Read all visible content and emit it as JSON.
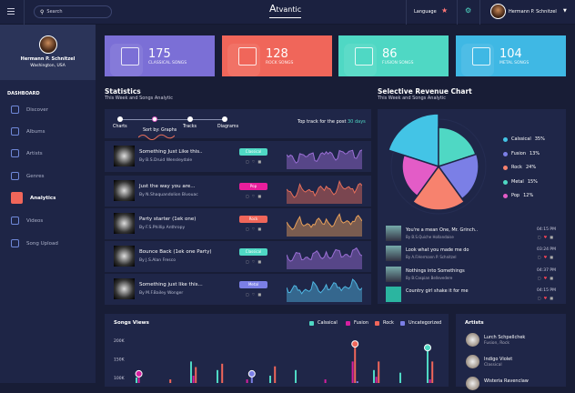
{
  "header": {
    "search_placeholder": "Search",
    "logo": "Atvantic",
    "language": "Language",
    "user": "Hermann P. Schnitzel"
  },
  "profile": {
    "name": "Hermann P. Schnitzel",
    "location": "Washington, USA"
  },
  "sidebar": {
    "section": "DASHBOARD",
    "items": [
      {
        "label": "Discover",
        "icon": "monitor-icon"
      },
      {
        "label": "Albums",
        "icon": "album-icon"
      },
      {
        "label": "Artists",
        "icon": "microphone-icon"
      },
      {
        "label": "Genres",
        "icon": "genre-icon"
      },
      {
        "label": "Analytics",
        "icon": "chart-icon",
        "active": true
      },
      {
        "label": "Videos",
        "icon": "video-icon"
      },
      {
        "label": "Song Upload",
        "icon": "upload-icon"
      }
    ]
  },
  "cards": [
    {
      "value": "175",
      "label": "CLASSICAL SONGS",
      "color": "#7b6fd6"
    },
    {
      "value": "128",
      "label": "ROCK SONGS",
      "color": "#f0665a"
    },
    {
      "value": "86",
      "label": "FUSION SONGS",
      "color": "#4fd8c4"
    },
    {
      "value": "104",
      "label": "METAL SONGS",
      "color": "#3fb8e4"
    }
  ],
  "statistics": {
    "title": "Statistics",
    "subtitle": "This Week and Songs Analytic",
    "steps": [
      "Charts",
      "Sort by: Graphs",
      "Tracks",
      "Diagrams"
    ],
    "top_track_prefix": "Top track for the post",
    "top_track_period": "30 days",
    "tracks": [
      {
        "title": "Something Just Like this..",
        "artist": "By B.S.Druid Wensleydale",
        "genre": "Classical",
        "genre_color": "#4fd8c4",
        "wave_color": "#9b6fd6"
      },
      {
        "title": "Just the way you are...",
        "artist": "By N.Shaquandolion Bivouac",
        "genre": "Pop",
        "genre_color": "#e91e9c",
        "wave_color": "#e86f5a"
      },
      {
        "title": "Party starter (1ek one)",
        "artist": "By F.S.Phillip Anthropy",
        "genre": "Rock",
        "genre_color": "#f0665a",
        "wave_color": "#e8a05a"
      },
      {
        "title": "Bounce Back (1ek one Party)",
        "artist": "By J.S.Alan Fresco",
        "genre": "Classical",
        "genre_color": "#4fd8c4",
        "wave_color": "#9b6fd6"
      },
      {
        "title": "Something just like this...",
        "artist": "By M.F.Bailey Wonger",
        "genre": "Metal",
        "genre_color": "#7b7fe6",
        "wave_color": "#4fb8e4"
      }
    ]
  },
  "revenue": {
    "title": "Selective Revenue Chart",
    "subtitle": "This Week and Songs Analytic",
    "chart_data": {
      "type": "pie",
      "legend": "right",
      "slices": [
        {
          "name": "Calssical",
          "value": 35,
          "color": "#43c4e6"
        },
        {
          "name": "Fusion",
          "value": 13,
          "color": "#7b7fe6"
        },
        {
          "name": "Rock",
          "value": 24,
          "color": "#f7826e"
        },
        {
          "name": "Metal",
          "value": 15,
          "color": "#4fd8c4"
        },
        {
          "name": "Pop",
          "value": 12,
          "color": "#e35cc7"
        }
      ]
    },
    "recent": [
      {
        "title": "You're a mean One, Mr. Grinch..",
        "artist": "By B.S.Quiche Hollandaise",
        "time": "04:15 PM"
      },
      {
        "title": "Look what you made me do",
        "artist": "By A.F.Hermann P. Schnitzel",
        "time": "03:24 PM"
      },
      {
        "title": "Nothings into Somethings",
        "artist": "By B.Caspian Bellevedere",
        "time": "04:37 PM"
      },
      {
        "title": "Country girl shake it for me",
        "artist": "",
        "time": "04:15 PM"
      }
    ]
  },
  "songs_views": {
    "title": "Songs Views",
    "chart_data": {
      "type": "bar",
      "yticks": [
        "200K",
        "150K",
        "100K"
      ],
      "series": [
        {
          "name": "Calssical",
          "color": "#4fd8c4",
          "values": [
            100,
            null,
            143,
            120,
            null,
            105,
            120,
            null,
            null,
            120,
            113,
            180
          ]
        },
        {
          "name": "Fusion",
          "color": "#d61fa0",
          "values": [
            110,
            null,
            105,
            null,
            95,
            null,
            null,
            95,
            143,
            102,
            null,
            95
          ]
        },
        {
          "name": "Rock",
          "color": "#f0665a",
          "values": [
            null,
            95,
            128,
            137,
            null,
            130,
            null,
            null,
            190,
            143,
            null,
            143
          ]
        },
        {
          "name": "Uncategorized",
          "color": "#7b7fe6",
          "values": [
            null,
            null,
            null,
            null,
            110,
            null,
            null,
            null,
            90,
            null,
            null,
            null
          ]
        }
      ]
    }
  },
  "artists": {
    "title": "Artists",
    "items": [
      {
        "name": "Lurch Schpellchek",
        "genre": "Fusion, Rock"
      },
      {
        "name": "Indigo Violet",
        "genre": "Classical"
      },
      {
        "name": "Wisteria Ravenclaw",
        "genre": ""
      }
    ]
  }
}
